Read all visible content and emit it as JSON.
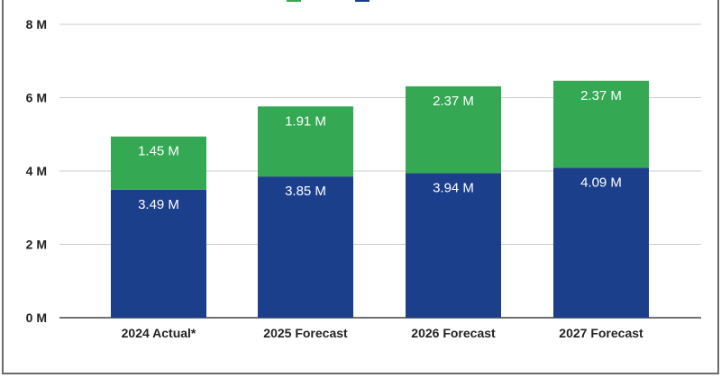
{
  "chart_data": {
    "type": "bar",
    "stacked": true,
    "categories": [
      "2024 Actual*",
      "2025 Forecast",
      "2026 Forecast",
      "2027 Forecast"
    ],
    "series": [
      {
        "color": "#1c3f8c",
        "values": [
          3.49,
          3.85,
          3.94,
          4.09
        ],
        "labels": [
          "3.49 M",
          "3.85 M",
          "3.94 M",
          "4.09 M"
        ]
      },
      {
        "color": "#34a853",
        "values": [
          1.45,
          1.91,
          2.37,
          2.37
        ],
        "labels": [
          "1.45 M",
          "1.91 M",
          "2.37 M",
          "2.37 M"
        ]
      }
    ],
    "yticks": [
      0,
      2,
      4,
      6,
      8
    ],
    "ytick_labels": [
      "0 M",
      "2 M",
      "4 M",
      "6 M",
      "8 M"
    ],
    "ylim": [
      0,
      8
    ],
    "grid": true,
    "legend": "top-center, cropped"
  }
}
